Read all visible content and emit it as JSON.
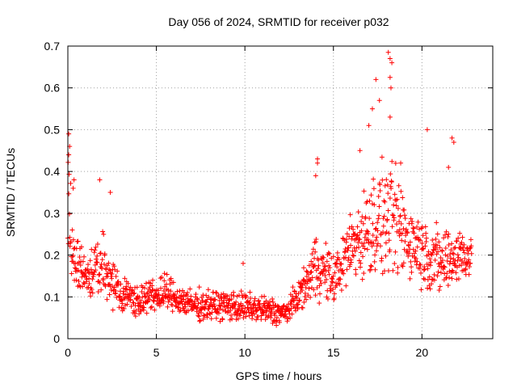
{
  "chart_data": {
    "type": "scatter",
    "title": "Day 056 of 2024, SRMTID for receiver p032",
    "xlabel": "GPS time / hours",
    "ylabel": "SRMTID / TECUs",
    "xlim": [
      0,
      24
    ],
    "ylim": [
      0,
      0.7
    ],
    "xticks": [
      0,
      5,
      10,
      15,
      20
    ],
    "xtick_labels": [
      "0",
      "5",
      "10",
      "15",
      "20"
    ],
    "yticks": [
      0,
      0.1,
      0.2,
      0.3,
      0.4,
      0.5,
      0.6,
      0.7
    ],
    "ytick_labels": [
      "0",
      "0.1",
      "0.2",
      "0.3",
      "0.4",
      "0.5",
      "0.6",
      "0.7"
    ],
    "grid": true,
    "marker": "plus",
    "series_color": "#ff0000",
    "profile": [
      {
        "x": 0.0,
        "base": 0.3,
        "spread": 0.2
      },
      {
        "x": 0.3,
        "base": 0.2,
        "spread": 0.1
      },
      {
        "x": 1.0,
        "base": 0.15,
        "spread": 0.07
      },
      {
        "x": 2.0,
        "base": 0.17,
        "spread": 0.1
      },
      {
        "x": 3.0,
        "base": 0.11,
        "spread": 0.06
      },
      {
        "x": 4.0,
        "base": 0.09,
        "spread": 0.05
      },
      {
        "x": 5.5,
        "base": 0.11,
        "spread": 0.06
      },
      {
        "x": 7.0,
        "base": 0.08,
        "spread": 0.05
      },
      {
        "x": 9.0,
        "base": 0.08,
        "spread": 0.05
      },
      {
        "x": 11.0,
        "base": 0.07,
        "spread": 0.05
      },
      {
        "x": 12.3,
        "base": 0.06,
        "spread": 0.04
      },
      {
        "x": 13.5,
        "base": 0.13,
        "spread": 0.06
      },
      {
        "x": 14.0,
        "base": 0.18,
        "spread": 0.12
      },
      {
        "x": 15.0,
        "base": 0.14,
        "spread": 0.08
      },
      {
        "x": 16.0,
        "base": 0.22,
        "spread": 0.12
      },
      {
        "x": 17.5,
        "base": 0.28,
        "spread": 0.18
      },
      {
        "x": 18.3,
        "base": 0.28,
        "spread": 0.2
      },
      {
        "x": 19.5,
        "base": 0.23,
        "spread": 0.12
      },
      {
        "x": 21.0,
        "base": 0.18,
        "spread": 0.12
      },
      {
        "x": 22.0,
        "base": 0.2,
        "spread": 0.1
      },
      {
        "x": 22.8,
        "base": 0.2,
        "spread": 0.08
      }
    ],
    "point_count": 1300,
    "outliers": [
      {
        "x": 0.05,
        "y": 0.49
      },
      {
        "x": 0.1,
        "y": 0.46
      },
      {
        "x": 0.05,
        "y": 0.44
      },
      {
        "x": 0.3,
        "y": 0.36
      },
      {
        "x": 0.35,
        "y": 0.38
      },
      {
        "x": 1.8,
        "y": 0.38
      },
      {
        "x": 2.4,
        "y": 0.35
      },
      {
        "x": 9.9,
        "y": 0.18
      },
      {
        "x": 14.1,
        "y": 0.43
      },
      {
        "x": 14.1,
        "y": 0.42
      },
      {
        "x": 14.0,
        "y": 0.39
      },
      {
        "x": 17.0,
        "y": 0.51
      },
      {
        "x": 17.2,
        "y": 0.55
      },
      {
        "x": 17.4,
        "y": 0.62
      },
      {
        "x": 17.6,
        "y": 0.57
      },
      {
        "x": 18.1,
        "y": 0.685
      },
      {
        "x": 18.2,
        "y": 0.67
      },
      {
        "x": 18.3,
        "y": 0.66
      },
      {
        "x": 18.2,
        "y": 0.625
      },
      {
        "x": 18.25,
        "y": 0.6
      },
      {
        "x": 18.2,
        "y": 0.53
      },
      {
        "x": 20.3,
        "y": 0.5
      },
      {
        "x": 21.5,
        "y": 0.41
      },
      {
        "x": 21.7,
        "y": 0.48
      },
      {
        "x": 21.8,
        "y": 0.47
      },
      {
        "x": 18.8,
        "y": 0.42
      },
      {
        "x": 16.5,
        "y": 0.45
      }
    ]
  }
}
